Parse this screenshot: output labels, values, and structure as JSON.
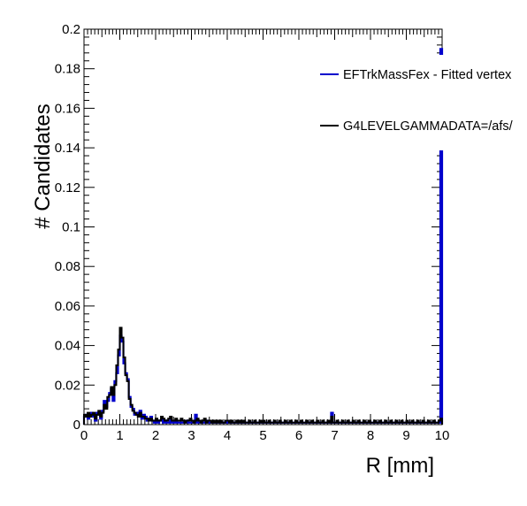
{
  "chart_data": {
    "type": "line",
    "title": "",
    "xlabel": "R [mm]",
    "ylabel": "# Candidates",
    "xlim": [
      0,
      10
    ],
    "ylim": [
      0,
      0.2
    ],
    "x_ticks": [
      "0",
      "1",
      "2",
      "3",
      "4",
      "5",
      "6",
      "7",
      "8",
      "9",
      "10"
    ],
    "y_ticks": [
      "0",
      "0.02",
      "0.04",
      "0.06",
      "0.08",
      "0.1",
      "0.12",
      "0.14",
      "0.16",
      "0.18",
      "0.2"
    ],
    "legend_position": "top-right",
    "bin_width": 0.05,
    "series": [
      {
        "name": "EFTrkMassFex - Fitted vertex",
        "color": "#0000cc",
        "values": [
          0.004,
          0.005,
          0.003,
          0.005,
          0.006,
          0.004,
          0.002,
          0.006,
          0.005,
          0.003,
          0.007,
          0.012,
          0.009,
          0.012,
          0.016,
          0.018,
          0.012,
          0.022,
          0.026,
          0.035,
          0.045,
          0.042,
          0.031,
          0.026,
          0.023,
          0.014,
          0.009,
          0.008,
          0.005,
          0.006,
          0.005,
          0.007,
          0.003,
          0.005,
          0.004,
          0.002,
          0.003,
          0.004,
          0.002,
          0.001,
          0.002,
          0.001,
          0.002,
          0.003,
          0.001,
          0.002,
          0.001,
          0.001,
          0.002,
          0.001,
          0.001,
          0.002,
          0.001,
          0.001,
          0.001,
          0.001,
          0.001,
          0.002,
          0.001,
          0.001,
          0.001,
          0.001,
          0.005,
          0.001,
          0.001,
          0.001,
          0.001,
          0.001,
          0.002,
          0.001,
          0.001,
          0.001,
          0.001,
          0.001,
          0.001,
          0.001,
          0.001,
          0.001,
          0.001,
          0.001,
          0.001,
          0.001,
          0.001,
          0.001,
          0.001,
          0.001,
          0.001,
          0.001,
          0.001,
          0.001,
          0.001,
          0.001,
          0.001,
          0.001,
          0.001,
          0.001,
          0.001,
          0.001,
          0.001,
          0.001,
          0.001,
          0.001,
          0.001,
          0.001,
          0.001,
          0.001,
          0.001,
          0.001,
          0.001,
          0.001,
          0.001,
          0.001,
          0.001,
          0.001,
          0.001,
          0.001,
          0.001,
          0.001,
          0.001,
          0.001,
          0.001,
          0.001,
          0.001,
          0.001,
          0.001,
          0.001,
          0.001,
          0.001,
          0.001,
          0.001,
          0.001,
          0.001,
          0.001,
          0.001,
          0.001,
          0.001,
          0.001,
          0.001,
          0.006,
          0.001,
          0.001,
          0.001,
          0.001,
          0.001,
          0.001,
          0.001,
          0.001,
          0.001,
          0.001,
          0.001,
          0.001,
          0.001,
          0.001,
          0.001,
          0.001,
          0.001,
          0.001,
          0.001,
          0.001,
          0.001,
          0.001,
          0.001,
          0.001,
          0.001,
          0.001,
          0.001,
          0.001,
          0.001,
          0.001,
          0.001,
          0.001,
          0.001,
          0.001,
          0.001,
          0.001,
          0.001,
          0.001,
          0.001,
          0.001,
          0.001,
          0.001,
          0.001,
          0.001,
          0.001,
          0.001,
          0.001,
          0.001,
          0.001,
          0.001,
          0.001,
          0.001,
          0.001,
          0.001,
          0.001,
          0.001,
          0.001,
          0.001,
          0.001,
          0.001,
          0.19
        ]
      },
      {
        "name": "G4LEVELGAMMADATA=/afs/",
        "color": "#000000",
        "values": [
          0.005,
          0.004,
          0.006,
          0.004,
          0.005,
          0.006,
          0.003,
          0.005,
          0.007,
          0.004,
          0.006,
          0.01,
          0.008,
          0.014,
          0.015,
          0.019,
          0.015,
          0.02,
          0.03,
          0.038,
          0.049,
          0.044,
          0.034,
          0.025,
          0.022,
          0.013,
          0.01,
          0.007,
          0.006,
          0.005,
          0.004,
          0.006,
          0.004,
          0.004,
          0.003,
          0.003,
          0.002,
          0.003,
          0.002,
          0.002,
          0.003,
          0.002,
          0.002,
          0.004,
          0.003,
          0.002,
          0.002,
          0.003,
          0.004,
          0.002,
          0.002,
          0.003,
          0.002,
          0.002,
          0.003,
          0.002,
          0.001,
          0.002,
          0.002,
          0.003,
          0.002,
          0.001,
          0.002,
          0.003,
          0.002,
          0.001,
          0.002,
          0.003,
          0.001,
          0.002,
          0.002,
          0.001,
          0.002,
          0.001,
          0.002,
          0.001,
          0.002,
          0.001,
          0.001,
          0.002,
          0.002,
          0.001,
          0.002,
          0.001,
          0.001,
          0.002,
          0.001,
          0.002,
          0.001,
          0.002,
          0.001,
          0.001,
          0.002,
          0.001,
          0.001,
          0.002,
          0.001,
          0.001,
          0.002,
          0.001,
          0.002,
          0.001,
          0.001,
          0.002,
          0.001,
          0.001,
          0.002,
          0.001,
          0.001,
          0.002,
          0.001,
          0.001,
          0.002,
          0.001,
          0.001,
          0.002,
          0.001,
          0.001,
          0.002,
          0.001,
          0.001,
          0.002,
          0.001,
          0.001,
          0.002,
          0.001,
          0.001,
          0.002,
          0.001,
          0.001,
          0.002,
          0.001,
          0.001,
          0.002,
          0.001,
          0.001,
          0.002,
          0.001,
          0.004,
          0.001,
          0.001,
          0.002,
          0.001,
          0.001,
          0.002,
          0.001,
          0.001,
          0.002,
          0.001,
          0.001,
          0.002,
          0.001,
          0.001,
          0.002,
          0.001,
          0.001,
          0.002,
          0.001,
          0.001,
          0.002,
          0.001,
          0.001,
          0.002,
          0.001,
          0.001,
          0.002,
          0.001,
          0.001,
          0.002,
          0.001,
          0.001,
          0.002,
          0.001,
          0.001,
          0.002,
          0.001,
          0.001,
          0.002,
          0.001,
          0.001,
          0.002,
          0.001,
          0.001,
          0.002,
          0.001,
          0.001,
          0.002,
          0.001,
          0.001,
          0.002,
          0.001,
          0.001,
          0.002,
          0.001,
          0.001,
          0.002,
          0.001,
          0.001,
          0.002,
          0.003
        ]
      }
    ]
  }
}
